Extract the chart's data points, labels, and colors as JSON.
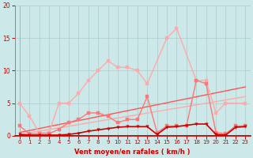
{
  "xlabel": "Vent moyen/en rafales ( km/h )",
  "xlim": [
    -0.5,
    23.5
  ],
  "ylim": [
    0,
    20
  ],
  "yticks": [
    0,
    5,
    10,
    15,
    20
  ],
  "xticks": [
    0,
    1,
    2,
    3,
    4,
    5,
    6,
    7,
    8,
    9,
    10,
    11,
    12,
    13,
    14,
    15,
    16,
    17,
    18,
    19,
    20,
    21,
    22,
    23
  ],
  "background_color": "#cce8e8",
  "grid_color": "#aacccc",
  "line_light": {
    "x": [
      0,
      1,
      2,
      3,
      4,
      5,
      6,
      7,
      8,
      9,
      10,
      11,
      12,
      13,
      15,
      16,
      18,
      19,
      20,
      21,
      23
    ],
    "y": [
      5.0,
      3.0,
      0.5,
      0.5,
      5.0,
      5.0,
      6.5,
      8.5,
      10.0,
      11.5,
      10.5,
      10.5,
      10.0,
      8.0,
      15.0,
      16.5,
      8.5,
      8.5,
      3.5,
      5.0,
      5.0
    ],
    "color": "#ffaaaa",
    "marker": "s",
    "markersize": 2.5,
    "linewidth": 1.0,
    "gaps_before": [
      14,
      17,
      22
    ]
  },
  "line_medium": {
    "x": [
      0,
      1,
      2,
      3,
      4,
      5,
      6,
      7,
      8,
      9,
      10,
      11,
      12,
      13,
      14,
      15,
      16,
      17,
      18,
      19,
      20,
      21,
      22,
      23
    ],
    "y": [
      1.5,
      0.3,
      0.3,
      0.3,
      1.0,
      2.0,
      2.5,
      3.5,
      3.5,
      3.0,
      2.0,
      2.5,
      2.5,
      6.0,
      0.5,
      1.5,
      1.5,
      1.5,
      8.5,
      8.0,
      0.5,
      0.3,
      1.5,
      1.5
    ],
    "color": "#ff7777",
    "marker": "s",
    "markersize": 2.5,
    "linewidth": 1.0
  },
  "line_dark": {
    "x": [
      0,
      1,
      2,
      3,
      4,
      5,
      6,
      7,
      8,
      9,
      10,
      11,
      12,
      13,
      14,
      15,
      16,
      17,
      18,
      19,
      20,
      21,
      22,
      23
    ],
    "y": [
      0.2,
      0.1,
      0.1,
      0.1,
      0.1,
      0.2,
      0.4,
      0.7,
      0.9,
      1.1,
      1.3,
      1.4,
      1.4,
      1.4,
      0.2,
      1.3,
      1.4,
      1.6,
      1.8,
      1.8,
      0.2,
      0.1,
      1.3,
      1.4
    ],
    "color": "#cc0000",
    "marker": "v",
    "markersize": 2.5,
    "linewidth": 1.2
  },
  "trend1": {
    "x": [
      0,
      23
    ],
    "y": [
      0.5,
      7.5
    ],
    "color": "#ff5555",
    "linewidth": 1.0
  },
  "trend2": {
    "x": [
      0,
      23
    ],
    "y": [
      0.2,
      6.0
    ],
    "color": "#ffaaaa",
    "linewidth": 1.0
  }
}
